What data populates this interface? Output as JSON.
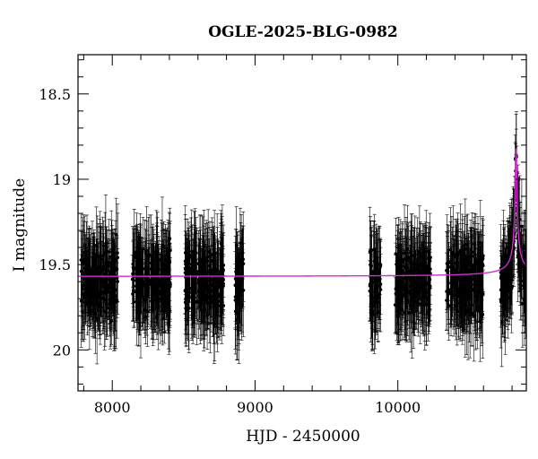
{
  "chart_data": {
    "type": "scatter",
    "title": "OGLE-2025-BLG-0982",
    "xlabel": "HJD - 2450000",
    "ylabel": "I magnitude",
    "xlim": [
      7760,
      10900
    ],
    "ylim": [
      20.24,
      18.27
    ],
    "y_inverted": true,
    "x_ticks": [
      8000,
      9000,
      10000
    ],
    "y_ticks": [
      18.5,
      19,
      19.5,
      20
    ],
    "model_color": "#d22bd2",
    "data_color": "#000000",
    "series": [
      {
        "kind": "observations",
        "seasons": [
          {
            "x_start": 7780,
            "x_end": 8040,
            "mag_mean": 19.6,
            "error": 0.22
          },
          {
            "x_start": 8140,
            "x_end": 8410,
            "mag_mean": 19.6,
            "error": 0.22
          },
          {
            "x_start": 8510,
            "x_end": 8780,
            "mag_mean": 19.6,
            "error": 0.22
          },
          {
            "x_start": 8860,
            "x_end": 8920,
            "mag_mean": 19.6,
            "error": 0.22
          },
          {
            "x_start": 9800,
            "x_end": 9880,
            "mag_mean": 19.6,
            "error": 0.22
          },
          {
            "x_start": 9980,
            "x_end": 10230,
            "mag_mean": 19.6,
            "error": 0.22
          },
          {
            "x_start": 10340,
            "x_end": 10600,
            "mag_mean": 19.6,
            "error": 0.22
          },
          {
            "x_start": 10720,
            "x_end": 10900,
            "mag_mean": 19.6,
            "error": 0.22
          }
        ]
      },
      {
        "kind": "model",
        "baseline": 19.57,
        "peak_x": 10828,
        "peak_mag": 18.82,
        "width": 12
      }
    ]
  }
}
